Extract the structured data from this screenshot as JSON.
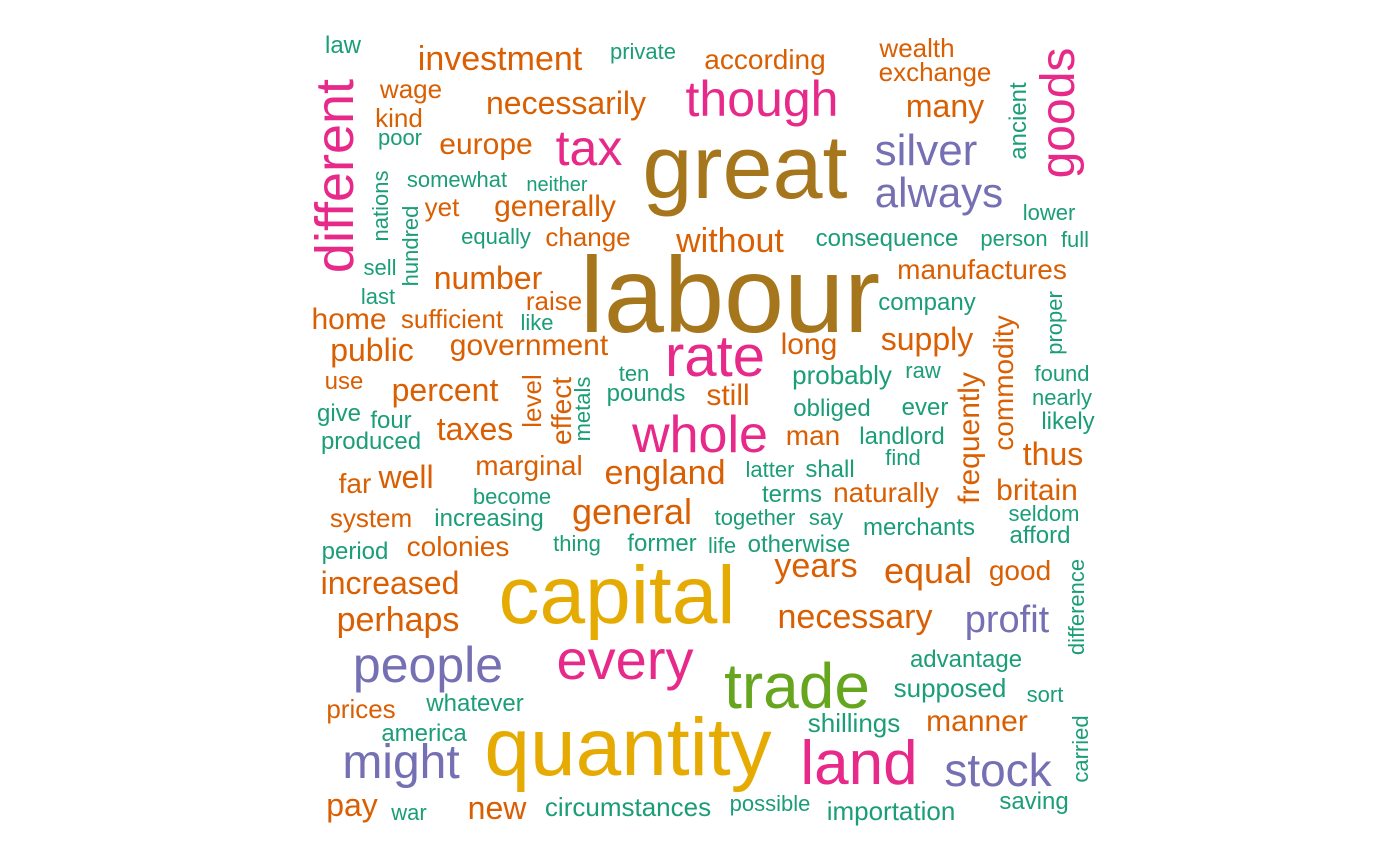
{
  "palette": {
    "teal": "#1b9e77",
    "orange": "#d95f02",
    "purple": "#7570b3",
    "magenta": "#e7298a",
    "green": "#66a61e",
    "gold": "#e6ab02",
    "brown": "#a6761d"
  },
  "words": [
    {
      "text": "labour",
      "c": "brown"
    },
    {
      "text": "great",
      "c": "brown"
    },
    {
      "text": "capital",
      "c": "gold"
    },
    {
      "text": "quantity",
      "c": "gold"
    },
    {
      "text": "trade",
      "c": "green"
    },
    {
      "text": "land",
      "c": "magenta"
    },
    {
      "text": "every",
      "c": "magenta"
    },
    {
      "text": "rate",
      "c": "magenta"
    },
    {
      "text": "whole",
      "c": "magenta"
    },
    {
      "text": "tax",
      "c": "magenta"
    },
    {
      "text": "though",
      "c": "magenta"
    },
    {
      "text": "goods",
      "c": "magenta"
    },
    {
      "text": "different",
      "c": "magenta"
    },
    {
      "text": "people",
      "c": "purple"
    },
    {
      "text": "might",
      "c": "purple"
    },
    {
      "text": "stock",
      "c": "purple"
    },
    {
      "text": "profit",
      "c": "purple"
    },
    {
      "text": "silver",
      "c": "purple"
    },
    {
      "text": "always",
      "c": "purple"
    },
    {
      "text": "investment",
      "c": "orange"
    },
    {
      "text": "necessarily",
      "c": "orange"
    },
    {
      "text": "according",
      "c": "orange"
    },
    {
      "text": "wealth",
      "c": "orange"
    },
    {
      "text": "exchange",
      "c": "orange"
    },
    {
      "text": "many",
      "c": "orange"
    },
    {
      "text": "wage",
      "c": "orange"
    },
    {
      "text": "kind",
      "c": "orange"
    },
    {
      "text": "europe",
      "c": "orange"
    },
    {
      "text": "generally",
      "c": "orange"
    },
    {
      "text": "yet",
      "c": "orange"
    },
    {
      "text": "change",
      "c": "orange"
    },
    {
      "text": "without",
      "c": "orange"
    },
    {
      "text": "manufactures",
      "c": "orange"
    },
    {
      "text": "number",
      "c": "orange"
    },
    {
      "text": "raise",
      "c": "orange"
    },
    {
      "text": "home",
      "c": "orange"
    },
    {
      "text": "sufficient",
      "c": "orange"
    },
    {
      "text": "public",
      "c": "orange"
    },
    {
      "text": "government",
      "c": "orange"
    },
    {
      "text": "long",
      "c": "orange"
    },
    {
      "text": "supply",
      "c": "orange"
    },
    {
      "text": "commodity",
      "c": "orange"
    },
    {
      "text": "use",
      "c": "orange"
    },
    {
      "text": "percent",
      "c": "orange"
    },
    {
      "text": "level",
      "c": "orange"
    },
    {
      "text": "effect",
      "c": "orange"
    },
    {
      "text": "still",
      "c": "orange"
    },
    {
      "text": "taxes",
      "c": "orange"
    },
    {
      "text": "man",
      "c": "orange"
    },
    {
      "text": "frequently",
      "c": "orange"
    },
    {
      "text": "thus",
      "c": "orange"
    },
    {
      "text": "far",
      "c": "orange"
    },
    {
      "text": "well",
      "c": "orange"
    },
    {
      "text": "marginal",
      "c": "orange"
    },
    {
      "text": "england",
      "c": "orange"
    },
    {
      "text": "naturally",
      "c": "orange"
    },
    {
      "text": "britain",
      "c": "orange"
    },
    {
      "text": "system",
      "c": "orange"
    },
    {
      "text": "general",
      "c": "orange"
    },
    {
      "text": "colonies",
      "c": "orange"
    },
    {
      "text": "increased",
      "c": "orange"
    },
    {
      "text": "years",
      "c": "orange"
    },
    {
      "text": "equal",
      "c": "orange"
    },
    {
      "text": "good",
      "c": "orange"
    },
    {
      "text": "perhaps",
      "c": "orange"
    },
    {
      "text": "necessary",
      "c": "orange"
    },
    {
      "text": "prices",
      "c": "orange"
    },
    {
      "text": "manner",
      "c": "orange"
    },
    {
      "text": "pay",
      "c": "orange"
    },
    {
      "text": "new",
      "c": "orange"
    },
    {
      "text": "law",
      "c": "teal"
    },
    {
      "text": "private",
      "c": "teal"
    },
    {
      "text": "ancient",
      "c": "teal"
    },
    {
      "text": "poor",
      "c": "teal"
    },
    {
      "text": "somewhat",
      "c": "teal"
    },
    {
      "text": "neither",
      "c": "teal"
    },
    {
      "text": "nations",
      "c": "teal"
    },
    {
      "text": "hundred",
      "c": "teal"
    },
    {
      "text": "lower",
      "c": "teal"
    },
    {
      "text": "equally",
      "c": "teal"
    },
    {
      "text": "consequence",
      "c": "teal"
    },
    {
      "text": "person",
      "c": "teal"
    },
    {
      "text": "full",
      "c": "teal"
    },
    {
      "text": "sell",
      "c": "teal"
    },
    {
      "text": "last",
      "c": "teal"
    },
    {
      "text": "like",
      "c": "teal"
    },
    {
      "text": "company",
      "c": "teal"
    },
    {
      "text": "proper",
      "c": "teal"
    },
    {
      "text": "ten",
      "c": "teal"
    },
    {
      "text": "metals",
      "c": "teal"
    },
    {
      "text": "pounds",
      "c": "teal"
    },
    {
      "text": "probably",
      "c": "teal"
    },
    {
      "text": "raw",
      "c": "teal"
    },
    {
      "text": "found",
      "c": "teal"
    },
    {
      "text": "give",
      "c": "teal"
    },
    {
      "text": "four",
      "c": "teal"
    },
    {
      "text": "obliged",
      "c": "teal"
    },
    {
      "text": "ever",
      "c": "teal"
    },
    {
      "text": "nearly",
      "c": "teal"
    },
    {
      "text": "likely",
      "c": "teal"
    },
    {
      "text": "produced",
      "c": "teal"
    },
    {
      "text": "landlord",
      "c": "teal"
    },
    {
      "text": "find",
      "c": "teal"
    },
    {
      "text": "latter",
      "c": "teal"
    },
    {
      "text": "shall",
      "c": "teal"
    },
    {
      "text": "become",
      "c": "teal"
    },
    {
      "text": "terms",
      "c": "teal"
    },
    {
      "text": "increasing",
      "c": "teal"
    },
    {
      "text": "together",
      "c": "teal"
    },
    {
      "text": "say",
      "c": "teal"
    },
    {
      "text": "merchants",
      "c": "teal"
    },
    {
      "text": "seldom",
      "c": "teal"
    },
    {
      "text": "afford",
      "c": "teal"
    },
    {
      "text": "period",
      "c": "teal"
    },
    {
      "text": "thing",
      "c": "teal"
    },
    {
      "text": "former",
      "c": "teal"
    },
    {
      "text": "life",
      "c": "teal"
    },
    {
      "text": "otherwise",
      "c": "teal"
    },
    {
      "text": "difference",
      "c": "teal"
    },
    {
      "text": "advantage",
      "c": "teal"
    },
    {
      "text": "supposed",
      "c": "teal"
    },
    {
      "text": "sort",
      "c": "teal"
    },
    {
      "text": "whatever",
      "c": "teal"
    },
    {
      "text": "shillings",
      "c": "teal"
    },
    {
      "text": "america",
      "c": "teal"
    },
    {
      "text": "carried",
      "c": "teal"
    },
    {
      "text": "circumstances",
      "c": "teal"
    },
    {
      "text": "possible",
      "c": "teal"
    },
    {
      "text": "importation",
      "c": "teal"
    },
    {
      "text": "saving",
      "c": "teal"
    },
    {
      "text": "war",
      "c": "teal"
    }
  ]
}
